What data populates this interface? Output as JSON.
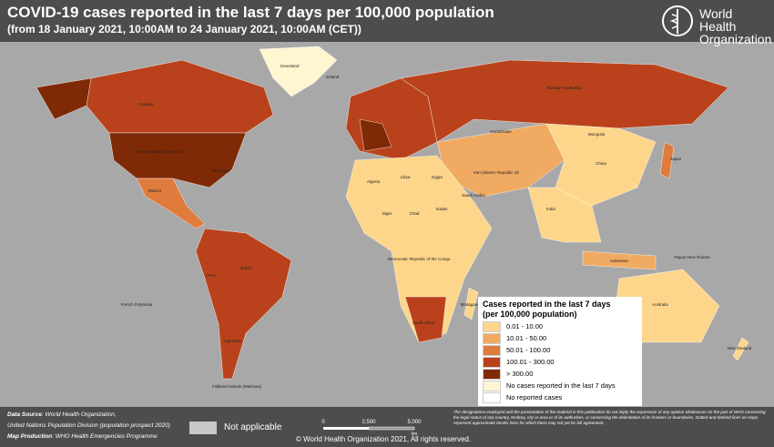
{
  "header": {
    "title": "COVID-19 cases reported in the last 7 days per 100,000 population",
    "subtitle": "(from 18 January 2021, 10:00AM  to 24 January 2021, 10:00AM (CET))",
    "organization": [
      "World Health",
      "Organization"
    ]
  },
  "legend": {
    "title": [
      "Cases reported in the last 7 days",
      "(per 100,000 population)"
    ],
    "items": [
      {
        "label": "0.01 - 10.00",
        "color": "#fdd68b"
      },
      {
        "label": "10.01 - 50.00",
        "color": "#f1aa62"
      },
      {
        "label": "50.01 - 100.00",
        "color": "#df7c3d"
      },
      {
        "label": "100.01 - 300.00",
        "color": "#b9421c"
      },
      {
        "label": "> 300.00",
        "color": "#7f2a07"
      },
      {
        "label": "No cases reported in the last 7 days",
        "color": "#fff5d1"
      },
      {
        "label": "No reported cases",
        "color": "#ffffff"
      }
    ]
  },
  "map_labels": [
    "Greenland",
    "Canada",
    "United States of America",
    "Mexico",
    "Brazil",
    "Peru",
    "Argentina",
    "Russian Federation",
    "China",
    "India",
    "Mongolia",
    "Kazakhstan",
    "Australia",
    "Algeria",
    "Libya",
    "Egypt",
    "Niger",
    "Chad",
    "Sudan",
    "Democratic Republic of the Congo",
    "South Africa",
    "Madagascar",
    "Indonesia",
    "Japan",
    "Saudi Arabia",
    "Iran (Islamic Republic of)",
    "New Zealand",
    "Papua New Guinea",
    "Iceland",
    "Bermuda",
    "French Polynesia",
    "Falkland Islands (Malvinas)"
  ],
  "footer": {
    "source_label": "Data Source",
    "source": ": World Health Organization,",
    "source2": "United Nations Population Division (population prospect 2020)",
    "production_label": "Map Production",
    "production": ": WHO Health Emergencies Programme",
    "not_applicable": "Not applicable",
    "scale": [
      "0",
      "2,500",
      "5,000",
      "km"
    ],
    "copyright": "© World Health Organization  2021,  All rights reserved.",
    "disclaimer": "The designations employed and the presentation of the material in this publication do not imply the expression of any opinion whatsoever on the part of WHO concerning the legal status of any country, territory, city or area or of its authorities, or concerning the delimitation of its frontiers or boundaries. Dotted and dashed lines on maps represent approximate border lines for which there may not yet be full agreement."
  }
}
